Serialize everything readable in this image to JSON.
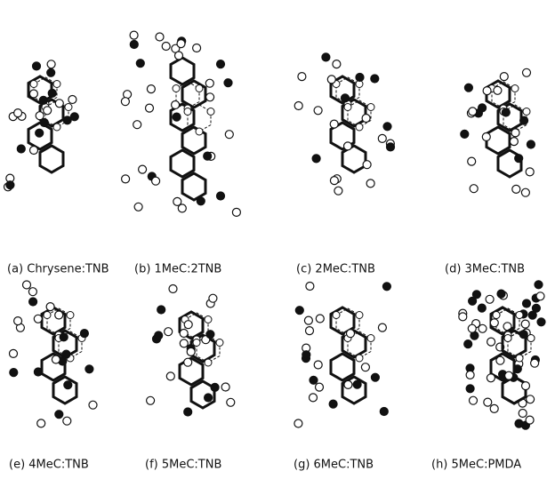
{
  "panels": [
    {
      "label": "(a) Chrysene:TNB"
    },
    {
      "label": "(b) 1MeC:2TNB"
    },
    {
      "label": "(c) 2MeC:TNB"
    },
    {
      "label": "(d) 3MeC:TNB"
    },
    {
      "label": "(e) 4MeC:TNB"
    },
    {
      "label": "(f) 5MeC:TNB"
    },
    {
      "label": "(g) 6MeC:TNB"
    },
    {
      "label": "(h) 5MeC:PMDA"
    }
  ]
}
